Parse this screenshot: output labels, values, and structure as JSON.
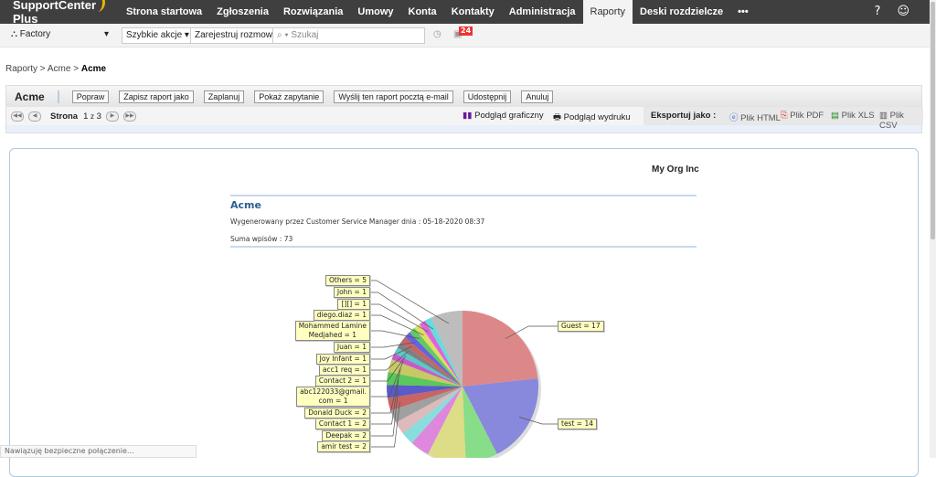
{
  "app": {
    "logo": "SupportCenter Plus"
  },
  "nav": [
    "Strona startowa",
    "Zgłoszenia",
    "Rozwiązania",
    "Umowy",
    "Konta",
    "Kontakty",
    "Administracja",
    "Raporty",
    "Deski rozdzielcze",
    "•••"
  ],
  "nav_active": "Raporty",
  "toolbar": {
    "site": "Factory",
    "quick_actions": "Szybkie akcje ▾",
    "log_call": "Zarejestruj rozmowę",
    "search_placeholder": "Szukaj",
    "notifications": "24"
  },
  "breadcrumb": {
    "a": "Raporty",
    "b": "Acme",
    "c": "Acme",
    "sep": " > "
  },
  "report": {
    "title": "Acme",
    "buttons": [
      "Popraw",
      "Zapisz raport jako",
      "Zaplanuj",
      "Pokaż zapytanie",
      "Wyślij ten raport pocztą e-mail",
      "Udostępnij",
      "Anuluj"
    ],
    "page_label": "Strona",
    "page": "1",
    "of": "z",
    "pages": "3",
    "graph_view": "Podgląd graficzny",
    "print_view": "Podgląd wydruku",
    "export_label": "Eksportuj jako :",
    "exports": [
      "Plik HTML",
      "Plik PDF",
      "Plik XLS",
      "Plik CSV"
    ]
  },
  "content": {
    "org": "My Org Inc",
    "title": "Acme",
    "generated": "Wygenerowany przez Customer Service Manager  dnia : 05-18-2020 08:37",
    "total": "Suma wpisów : 73"
  },
  "chart_data": {
    "type": "pie",
    "total": 73,
    "slices": [
      {
        "label": "Guest = 17",
        "value": 17,
        "color": "#dd8888"
      },
      {
        "label": "test = 14",
        "value": 14,
        "color": "#8888dd"
      },
      {
        "label": "",
        "value": 5,
        "color": "#88dd88"
      },
      {
        "label": "",
        "value": 6,
        "color": "#dddd88"
      },
      {
        "label": "",
        "value": 3,
        "color": "#dd88dd"
      },
      {
        "label": "",
        "value": 2,
        "color": "#88dddd"
      },
      {
        "label": "",
        "value": 2,
        "color": "#ddbbbb"
      },
      {
        "label": "",
        "value": 2,
        "color": "#a0a0a0"
      },
      {
        "label": "amir test = 2",
        "value": 2,
        "color": "#c86464"
      },
      {
        "label": "Deepak = 2",
        "value": 2,
        "color": "#5a5ac8"
      },
      {
        "label": "Contact 1 = 2",
        "value": 2,
        "color": "#5ac85a"
      },
      {
        "label": "Donald Duck = 2",
        "value": 2,
        "color": "#c8c864"
      },
      {
        "label": "abc122033@gmail.\ncom = 1",
        "value": 1,
        "color": "#c85ac8"
      },
      {
        "label": "Contact 2 = 1",
        "value": 1,
        "color": "#5ac8c8"
      },
      {
        "label": "acc1 req = 1",
        "value": 1,
        "color": "#808080"
      },
      {
        "label": "Joy Infant = 1",
        "value": 1,
        "color": "#c86464"
      },
      {
        "label": "Juan = 1",
        "value": 1,
        "color": "#6464dd"
      },
      {
        "label": "Mohammed Lamine\nMedjahed = 1",
        "value": 1,
        "color": "#64c864"
      },
      {
        "label": "diego.diaz = 1",
        "value": 1,
        "color": "#dddd64"
      },
      {
        "label": "[][] = 1",
        "value": 1,
        "color": "#dd64dd"
      },
      {
        "label": "John = 1",
        "value": 1,
        "color": "#64dddd"
      },
      {
        "label": "Others = 5",
        "value": 5,
        "color": "#bdbdbd"
      }
    ]
  },
  "status": "Nawiązuję bezpieczne połączenie..."
}
